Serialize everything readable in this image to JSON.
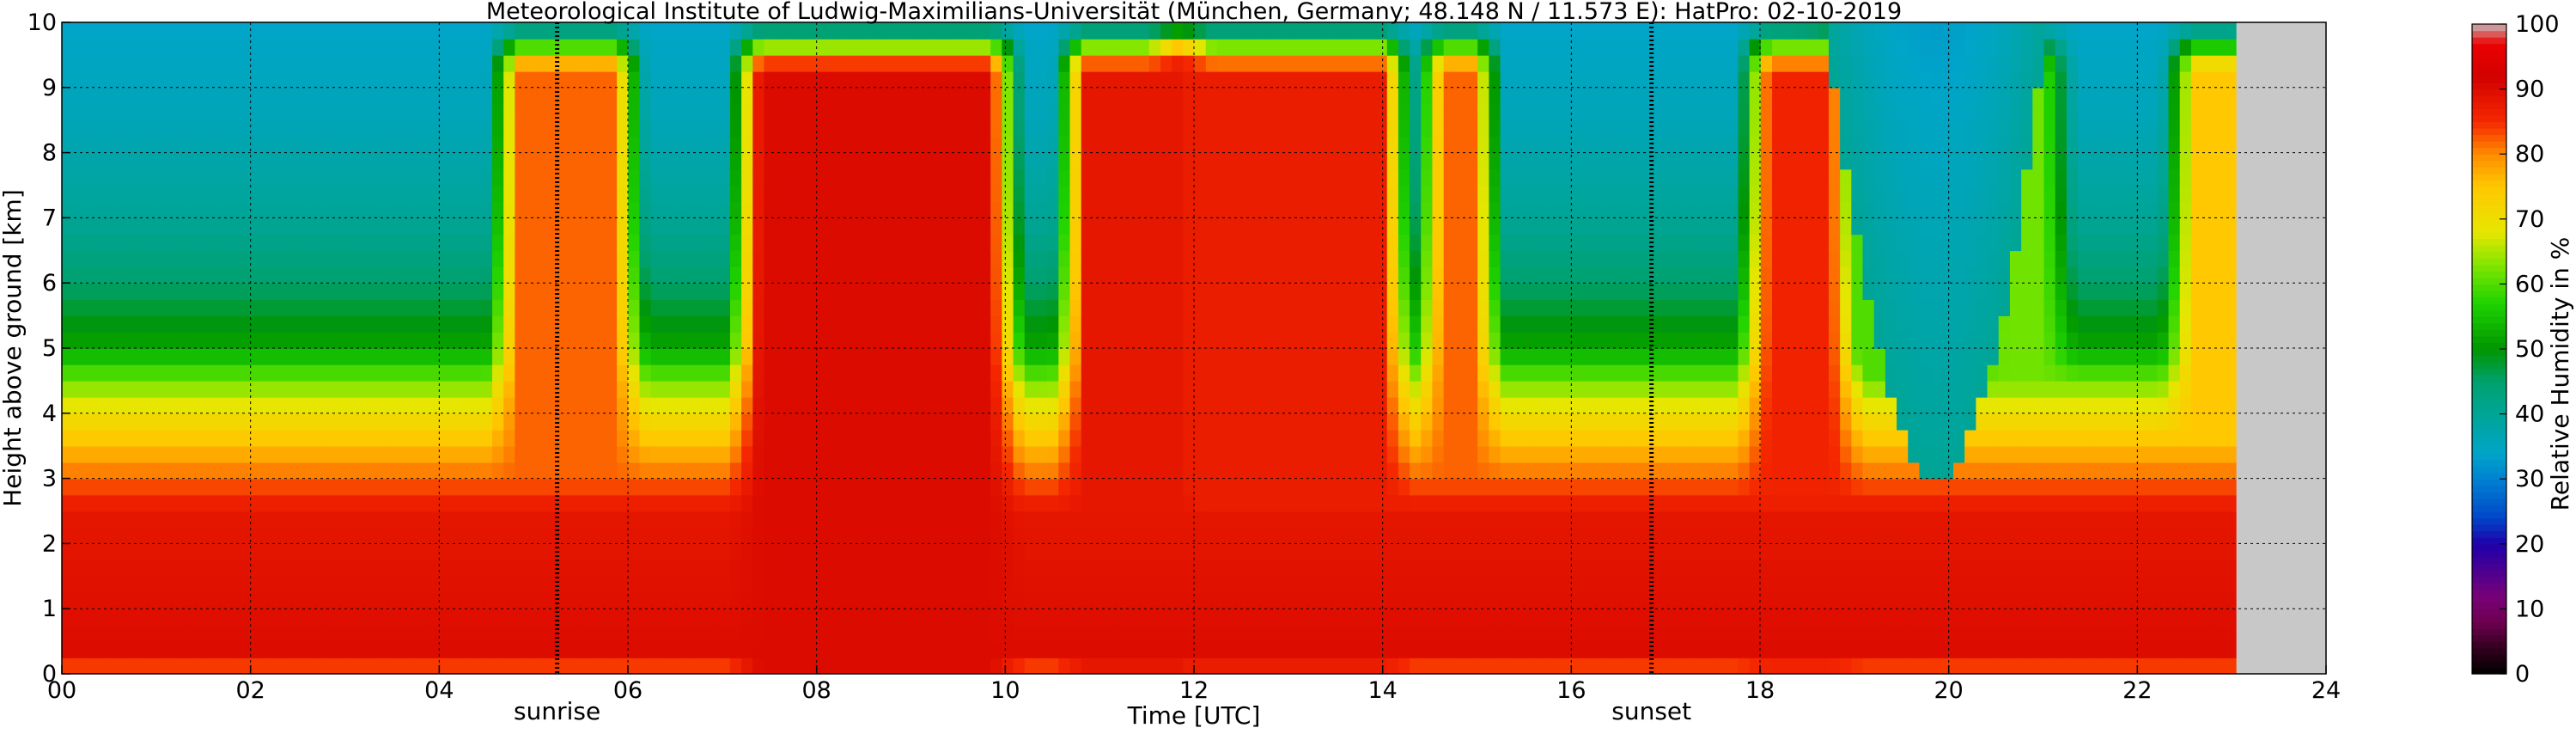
{
  "chart_data": {
    "type": "heatmap",
    "title": "Meteorological Institute of Ludwig-Maximilians-Universität (München, Germany; 48.148 N / 11.573 E):    HatPro: 02-10-2019",
    "xlabel": "Time [UTC]",
    "ylabel": "Height above ground [km]",
    "xlim": [
      0,
      24
    ],
    "ylim": [
      0,
      10
    ],
    "x_ticks": [
      "00",
      "02",
      "04",
      "06",
      "08",
      "10",
      "12",
      "14",
      "16",
      "18",
      "20",
      "22",
      "24"
    ],
    "y_ticks": [
      "0",
      "1",
      "2",
      "3",
      "4",
      "5",
      "6",
      "7",
      "8",
      "9",
      "10"
    ],
    "grid": true,
    "colorbar": {
      "label": "Relative Humidity in %",
      "range": [
        0,
        100
      ],
      "ticks": [
        "0",
        "10",
        "20",
        "30",
        "40",
        "50",
        "60",
        "70",
        "80",
        "90",
        "100"
      ]
    },
    "annotations": [
      {
        "text": "sunrise",
        "x": 5.25
      },
      {
        "text": "sunset",
        "x": 16.85
      }
    ],
    "no_data_after": 23.05,
    "humidity_layers": [
      {
        "height_km": 0.0,
        "rh": 80
      },
      {
        "height_km": 0.3,
        "rh": 90
      },
      {
        "height_km": 2.5,
        "rh": 88
      },
      {
        "height_km": 3.0,
        "rh": 82
      },
      {
        "height_km": 3.5,
        "rh": 76
      },
      {
        "height_km": 4.0,
        "rh": 70
      },
      {
        "height_km": 4.5,
        "rh": 62
      },
      {
        "height_km": 5.0,
        "rh": 52
      },
      {
        "height_km": 6.0,
        "rh": 45
      },
      {
        "height_km": 7.0,
        "rh": 40
      },
      {
        "height_km": 8.5,
        "rh": 36
      },
      {
        "height_km": 10.0,
        "rh": 34
      }
    ],
    "moist_events": [
      {
        "start": 4.85,
        "end": 5.85,
        "rh": 82
      },
      {
        "start": 7.4,
        "end": 9.85,
        "rh": 90
      },
      {
        "start": 10.85,
        "end": 11.85,
        "rh": 88
      },
      {
        "start": 11.85,
        "end": 14.0,
        "rh": 87
      },
      {
        "start": 14.65,
        "end": 14.95,
        "rh": 82
      },
      {
        "start": 18.1,
        "end": 18.75,
        "rh": 86
      },
      {
        "start": 18.75,
        "end": 19.5,
        "rh": 60
      },
      {
        "start": 20.6,
        "end": 21.0,
        "rh": 62
      },
      {
        "start": 22.6,
        "end": 23.0,
        "rh": 75
      }
    ],
    "dry_events": [
      {
        "start": 18.75,
        "end": 21.0,
        "rh": 30
      }
    ]
  }
}
